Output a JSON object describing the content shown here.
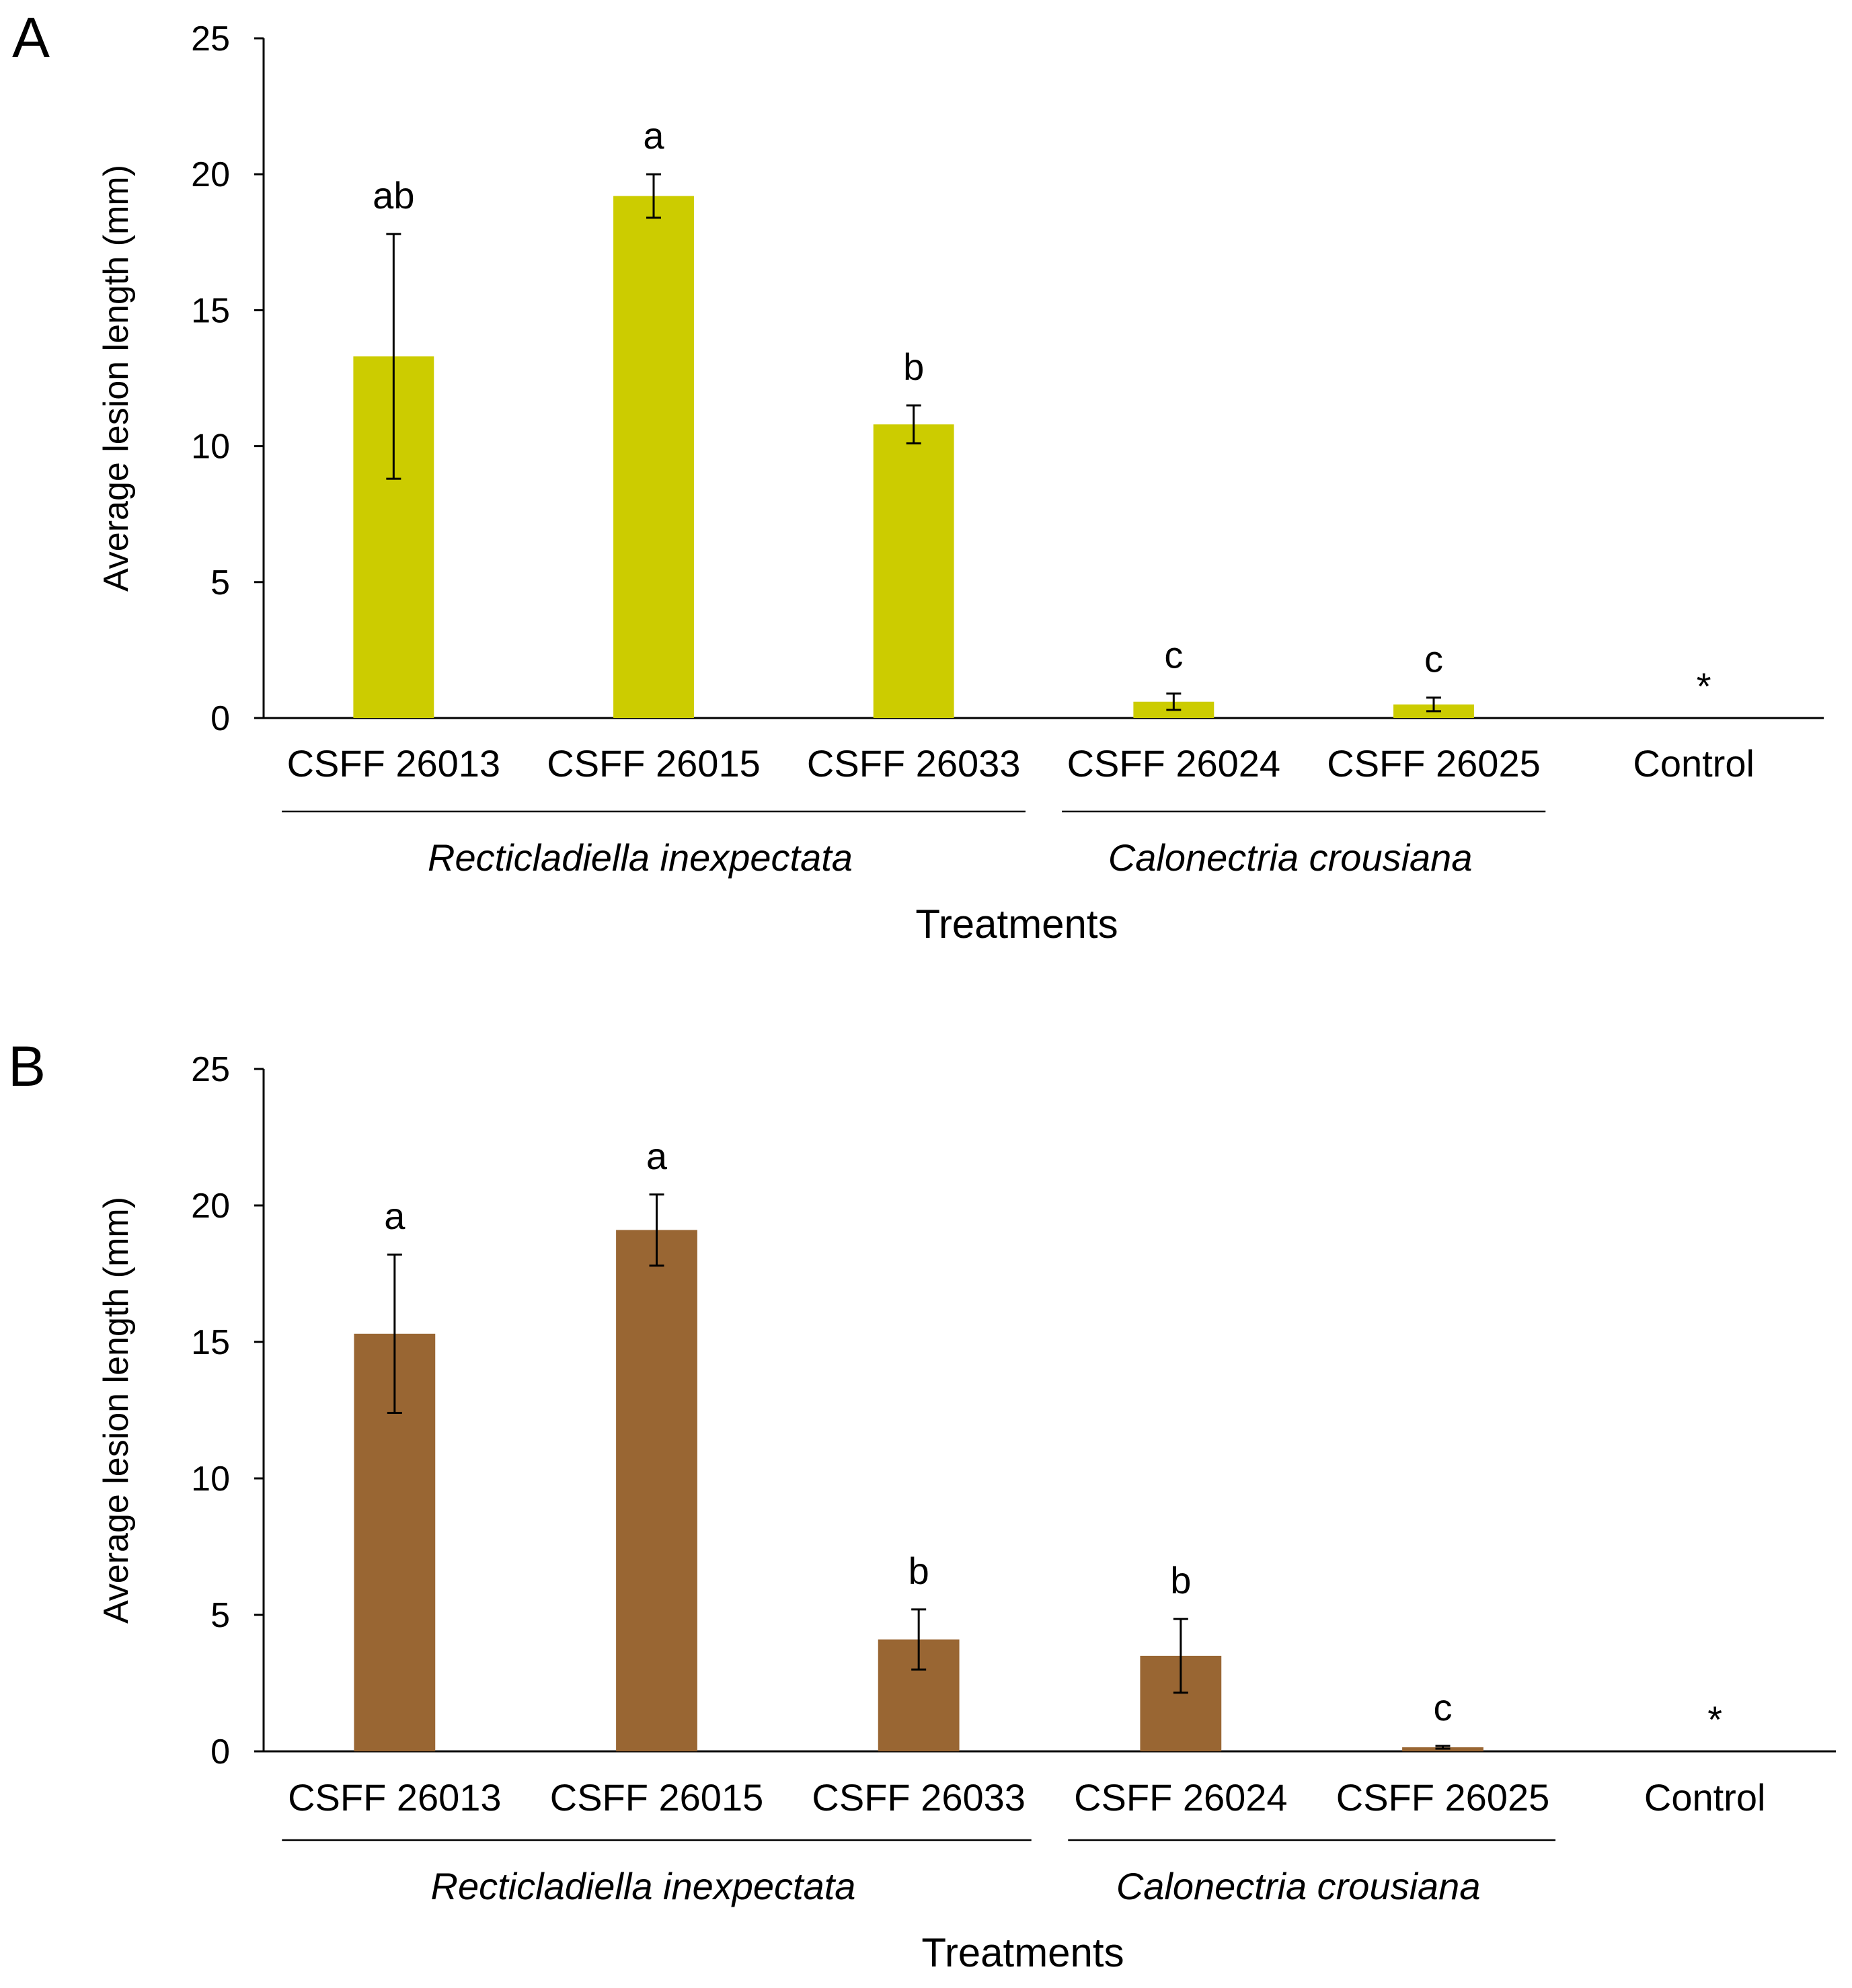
{
  "chart_data": [
    {
      "panel": "A",
      "type": "bar",
      "categories": [
        "CSFF 26013",
        "CSFF 26015",
        "CSFF 26033",
        "CSFF 26024",
        "CSFF 26025",
        "Control"
      ],
      "values": [
        13.3,
        19.2,
        10.8,
        0.6,
        0.5,
        0
      ],
      "errors": [
        4.5,
        0.8,
        0.7,
        0.3,
        0.25,
        0
      ],
      "significance": [
        "ab",
        "a",
        "b",
        "c",
        "c",
        "*"
      ],
      "groups": [
        {
          "label": "Recticladiella inexpectata",
          "from": 0,
          "to": 2
        },
        {
          "label": "Calonectria crousiana",
          "from": 3,
          "to": 4
        }
      ],
      "xlabel": "Treatments",
      "ylabel": "Average lesion length (mm)",
      "ylim": [
        0,
        25
      ],
      "yticks": [
        "0",
        "5",
        "10",
        "15",
        "20",
        "25"
      ],
      "bar_color": "#cccc00",
      "grid": false
    },
    {
      "panel": "B",
      "type": "bar",
      "categories": [
        "CSFF 26013",
        "CSFF 26015",
        "CSFF 26033",
        "CSFF 26024",
        "CSFF 26025",
        "Control"
      ],
      "values": [
        15.3,
        19.1,
        4.1,
        3.5,
        0.15,
        0
      ],
      "errors": [
        2.9,
        1.3,
        1.1,
        1.35,
        0.05,
        0
      ],
      "significance": [
        "a",
        "a",
        "b",
        "b",
        "c",
        "*"
      ],
      "groups": [
        {
          "label": "Recticladiella inexpectata",
          "from": 0,
          "to": 2
        },
        {
          "label": "Calonectria crousiana",
          "from": 3,
          "to": 4
        }
      ],
      "xlabel": "Treatments",
      "ylabel": "Average lesion length (mm)",
      "ylim": [
        0,
        25
      ],
      "yticks": [
        "0",
        "5",
        "10",
        "15",
        "20",
        "25"
      ],
      "bar_color": "#996633",
      "grid": false
    }
  ]
}
